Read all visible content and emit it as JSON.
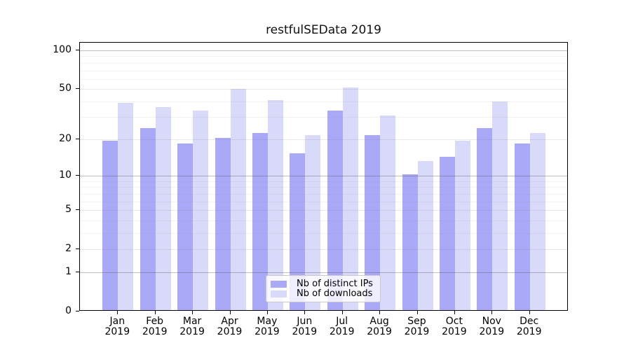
{
  "title": "restfulSEData 2019",
  "chart_data": {
    "type": "bar",
    "title": "restfulSEData 2019",
    "categories": [
      "Jan",
      "Feb",
      "Mar",
      "Apr",
      "May",
      "Jun",
      "Jul",
      "Aug",
      "Sep",
      "Oct",
      "Nov",
      "Dec"
    ],
    "x_sublabel": "2019",
    "series": [
      {
        "name": "Nb of distinct IPs",
        "color": "#a9a9f7",
        "values": [
          19,
          24,
          18,
          20,
          22,
          15,
          33,
          21,
          10,
          14,
          24,
          18
        ]
      },
      {
        "name": "Nb of downloads",
        "color": "#d9d9f9",
        "values": [
          38,
          35,
          33,
          49,
          40,
          21,
          50,
          30,
          13,
          19,
          39,
          22
        ]
      }
    ],
    "xlabel": "",
    "ylabel": "",
    "yscale": "log1p",
    "ylim": [
      0,
      114.7
    ],
    "y_major_ticks": [
      0,
      1,
      2,
      5,
      10,
      20,
      50,
      100
    ],
    "gridlines_decade": [
      1,
      10,
      100
    ],
    "gridlines_mid": [
      2,
      5,
      20,
      50
    ],
    "gridlines_minor": [
      3,
      4,
      6,
      7,
      8,
      9,
      30,
      40,
      60,
      70,
      80,
      90
    ],
    "grid": true,
    "legend_position": "lower center"
  },
  "colors": {
    "bar_distinct_ips": "#a9a9f7",
    "bar_downloads": "#d9d9f9",
    "spine": "#000000",
    "background": "#ffffff"
  }
}
